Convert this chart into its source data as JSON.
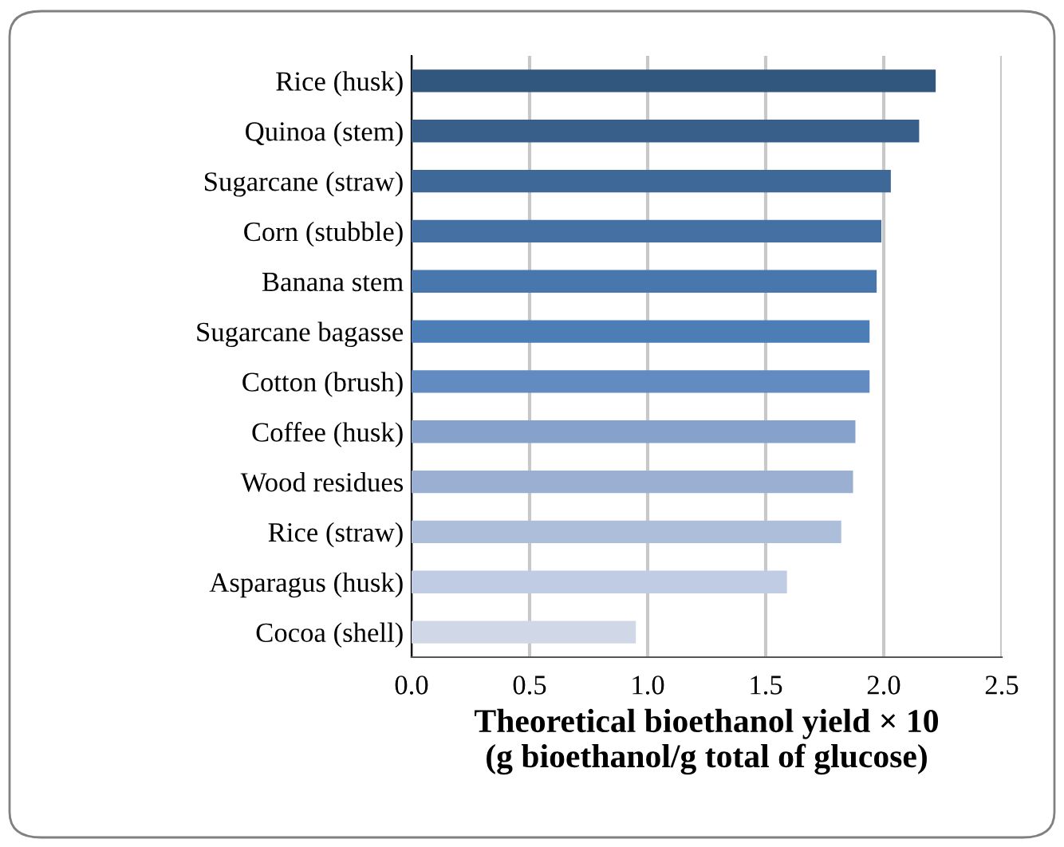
{
  "chart_data": {
    "type": "bar",
    "orientation": "horizontal",
    "categories": [
      "Rice (husk)",
      "Quinoa (stem)",
      "Sugarcane (straw)",
      "Corn (stubble)",
      "Banana stem",
      "Sugarcane bagasse",
      "Cotton (brush)",
      "Coffee (husk)",
      "Wood residues",
      "Rice (straw)",
      "Asparagus (husk)",
      "Cocoa (shell)"
    ],
    "values": [
      2.22,
      2.15,
      2.03,
      1.99,
      1.97,
      1.94,
      1.94,
      1.88,
      1.87,
      1.82,
      1.59,
      0.95
    ],
    "colors": [
      "#31577f",
      "#375f8a",
      "#3d6898",
      "#4470a3",
      "#4877ad",
      "#4c7db7",
      "#628bc2",
      "#86a2cc",
      "#9bafd2",
      "#adbedb",
      "#bfcce4",
      "#d0d8e8"
    ],
    "xlim": [
      0,
      2.5
    ],
    "xticks": [
      {
        "value": 0,
        "label": "0.0"
      },
      {
        "value": 0.5,
        "label": "0.5"
      },
      {
        "value": 1,
        "label": "1.0"
      },
      {
        "value": 1.5,
        "label": "1.5"
      },
      {
        "value": 2,
        "label": "2.0"
      },
      {
        "value": 2.5,
        "label": "2.5"
      }
    ],
    "xlabel": "Theoretical bioethanol yield × 10\n(g bioethanol/g total of glucose)",
    "grid": "x"
  }
}
